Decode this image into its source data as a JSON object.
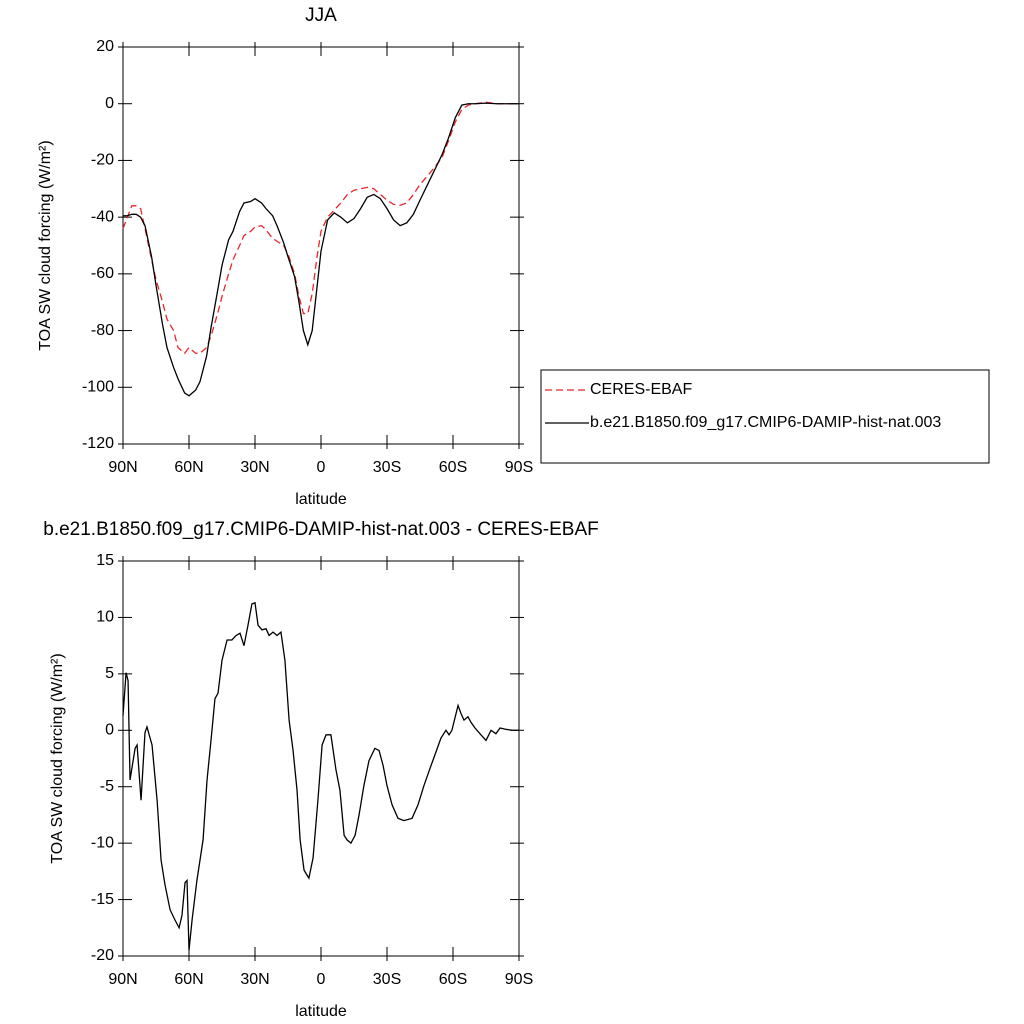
{
  "chart_data": [
    {
      "type": "line",
      "title": "JJA",
      "xlabel": "latitude",
      "ylabel": "TOA SW cloud forcing (W/m²)",
      "xlim": [
        90,
        -90
      ],
      "xticks": [
        {
          "value": 90,
          "label": "90N"
        },
        {
          "value": 60,
          "label": "60N"
        },
        {
          "value": 30,
          "label": "30N"
        },
        {
          "value": 0,
          "label": "0"
        },
        {
          "value": -30,
          "label": "30S"
        },
        {
          "value": -60,
          "label": "60S"
        },
        {
          "value": -90,
          "label": "90S"
        }
      ],
      "ylim": [
        -120,
        20
      ],
      "yticks": [
        -120,
        -100,
        -80,
        -60,
        -40,
        -20,
        0,
        20
      ],
      "x": [
        90,
        88,
        86,
        84,
        82,
        80,
        77,
        75,
        72,
        70,
        67,
        65,
        62,
        60,
        57,
        55,
        52,
        50,
        47,
        45,
        42,
        40,
        37,
        35,
        32,
        30,
        27,
        25,
        22,
        20,
        17,
        15,
        12,
        10,
        8,
        6,
        4,
        2,
        0,
        -3,
        -6,
        -9,
        -12,
        -15,
        -18,
        -21,
        -24,
        -27,
        -30,
        -33,
        -36,
        -39,
        -42,
        -45,
        -50,
        -55,
        -58,
        -61,
        -64,
        -67,
        -70,
        -75,
        -80,
        -85,
        -90
      ],
      "series": [
        {
          "name": "CERES-EBAF",
          "color": "#e8262b",
          "style": "dashed",
          "values": [
            -44,
            -40,
            -36,
            -36,
            -37,
            -44,
            -55,
            -62,
            -70,
            -76,
            -80,
            -86,
            -88,
            -86,
            -88,
            -88,
            -86,
            -82,
            -74,
            -68,
            -60,
            -55,
            -50,
            -46.5,
            -45,
            -43.5,
            -43,
            -44.5,
            -47.5,
            -48.5,
            -50,
            -53,
            -60,
            -68,
            -74,
            -74,
            -67,
            -55,
            -45,
            -40,
            -37.5,
            -35,
            -32,
            -30.5,
            -30,
            -29.5,
            -30,
            -32,
            -34,
            -35.5,
            -35.8,
            -35,
            -32,
            -28.5,
            -24,
            -19,
            -13,
            -6.5,
            -2,
            -0.5,
            0,
            0.5,
            0,
            0,
            0
          ]
        },
        {
          "name": "b.e21.B1850.f09_g17.CMIP6-DAMIP-hist-nat.003",
          "color": "#000000",
          "style": "solid",
          "values": [
            -39.5,
            -39.5,
            -39,
            -39,
            -40,
            -43,
            -54,
            -64,
            -78,
            -86,
            -93,
            -97,
            -102,
            -103,
            -101,
            -98,
            -89,
            -79,
            -66,
            -57,
            -48,
            -45,
            -38,
            -35,
            -34.5,
            -33.5,
            -35,
            -37,
            -39.5,
            -43,
            -49,
            -54,
            -61,
            -70,
            -80,
            -85,
            -80,
            -66,
            -52,
            -41,
            -38.5,
            -40,
            -42,
            -40.5,
            -37,
            -33,
            -32,
            -33.5,
            -37,
            -41,
            -43,
            -42,
            -39,
            -34,
            -26,
            -18,
            -12,
            -5,
            -0.5,
            0,
            0,
            0.2,
            0,
            0,
            0
          ]
        }
      ]
    },
    {
      "type": "line",
      "title": "b.e21.B1850.f09_g17.CMIP6-DAMIP-hist-nat.003 - CERES-EBAF",
      "xlabel": "latitude",
      "ylabel": "TOA SW cloud forcing (W/m²)",
      "xlim": [
        90,
        -90
      ],
      "xticks": [
        {
          "value": 90,
          "label": "90N"
        },
        {
          "value": 60,
          "label": "60N"
        },
        {
          "value": 30,
          "label": "30N"
        },
        {
          "value": 0,
          "label": "0"
        },
        {
          "value": -30,
          "label": "30S"
        },
        {
          "value": -60,
          "label": "60S"
        },
        {
          "value": -90,
          "label": "90S"
        }
      ],
      "ylim": [
        -20,
        15
      ],
      "yticks": [
        -20,
        -15,
        -10,
        -5,
        0,
        5,
        10,
        15
      ],
      "x": [
        90,
        88.6,
        87.7,
        86.8,
        84.5,
        83.6,
        81.8,
        80,
        79.1,
        76.8,
        74.5,
        72.7,
        70.9,
        68.6,
        66.4,
        64.5,
        63.2,
        61.8,
        60.9,
        60,
        58.6,
        56.4,
        53.6,
        51.8,
        50,
        48.2,
        46.8,
        45,
        42.7,
        40.5,
        38.6,
        36.8,
        35,
        33.2,
        31.4,
        30,
        28.6,
        26.8,
        25,
        23.6,
        21.8,
        20,
        18.2,
        16.4,
        14.5,
        12.7,
        10.9,
        9.5,
        7.7,
        5.5,
        3.6,
        1.4,
        -0.5,
        -2.3,
        -4.5,
        -6.8,
        -8.6,
        -10.5,
        -11.8,
        -13.6,
        -15.5,
        -17.3,
        -19.5,
        -21.8,
        -24.5,
        -26.4,
        -28.2,
        -30,
        -32.3,
        -35,
        -37.7,
        -41.4,
        -44.1,
        -46.8,
        -49.5,
        -52.3,
        -54.5,
        -56.8,
        -58.2,
        -59.5,
        -60.9,
        -62.3,
        -63.6,
        -65,
        -66.8,
        -68.2,
        -70,
        -72.7,
        -75,
        -77.3,
        -79.5,
        -81.4,
        -83.6,
        -86.8,
        -90
      ],
      "series": [
        {
          "color": "#000000",
          "style": "solid",
          "values": [
            1.3,
            5.1,
            4.4,
            -4.4,
            -1.6,
            -1.3,
            -6.2,
            -0.2,
            0.3,
            -1.3,
            -6.2,
            -11.5,
            -13.7,
            -15.9,
            -16.8,
            -17.5,
            -16.4,
            -13.5,
            -13.3,
            -19.5,
            -16.8,
            -13.3,
            -9.7,
            -4.4,
            -0.9,
            2.8,
            3.3,
            6.2,
            8,
            8,
            8.4,
            8.6,
            7.5,
            9.3,
            11.2,
            11.3,
            9.3,
            8.9,
            9,
            8.4,
            8.7,
            8.4,
            8.7,
            6.2,
            0.9,
            -1.8,
            -5.3,
            -9.7,
            -12.4,
            -13.1,
            -11.3,
            -6.2,
            -1.3,
            -0.4,
            -0.4,
            -3.5,
            -5.3,
            -9.3,
            -9.7,
            -10,
            -9.3,
            -7.5,
            -4.9,
            -2.7,
            -1.6,
            -1.8,
            -3.1,
            -4.9,
            -6.6,
            -7.8,
            -8,
            -7.8,
            -6.6,
            -4.9,
            -3.4,
            -1.9,
            -0.7,
            0,
            -0.4,
            0,
            1.1,
            2.2,
            1.5,
            0.9,
            1.2,
            0.7,
            0.2,
            -0.4,
            -0.9,
            0,
            -0.3,
            0.2,
            0.1,
            0,
            0
          ]
        }
      ]
    }
  ]
}
